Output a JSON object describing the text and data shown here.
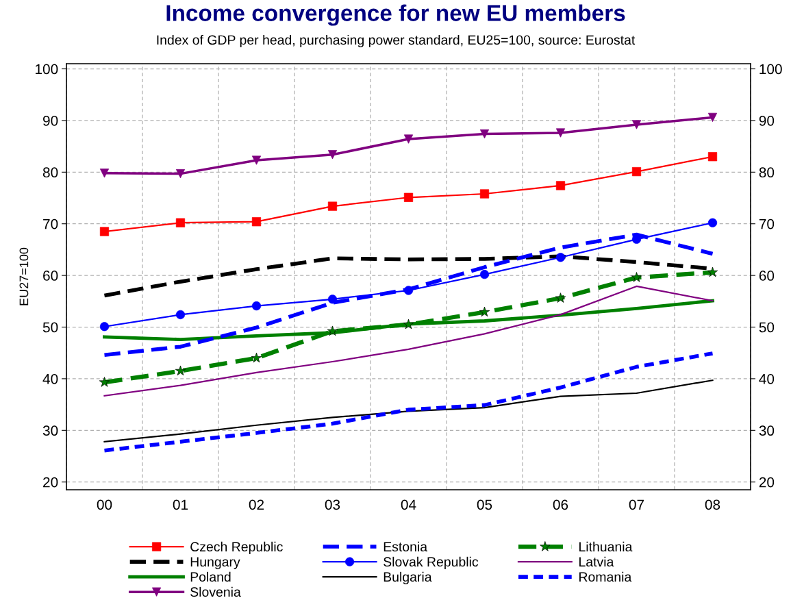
{
  "chart_data": {
    "type": "line",
    "title": "Income convergence for new EU members",
    "subtitle": "Index of GDP per head, purchasing power standard, EU25=100, source: Eurostat",
    "ylabel": "EU27=100",
    "categories": [
      "00",
      "01",
      "02",
      "03",
      "04",
      "05",
      "06",
      "07",
      "08"
    ],
    "ylim": [
      18.5,
      101
    ],
    "yticks": [
      20,
      30,
      40,
      50,
      60,
      70,
      80,
      90,
      100
    ],
    "y2lim": [
      18.5,
      101
    ],
    "y2ticks": [
      20,
      30,
      40,
      50,
      60,
      70,
      80,
      90,
      100
    ],
    "grid": true,
    "legend": "bottom",
    "series": [
      {
        "name": "Czech Republic",
        "color": "#ff0000",
        "marker": "square",
        "line_style": "solid",
        "values": [
          68.5,
          70.2,
          70.4,
          73.4,
          75.1,
          75.8,
          77.4,
          80.1,
          83.0
        ]
      },
      {
        "name": "Hungary",
        "color": "#000000",
        "marker": "none",
        "line_style": "dashed",
        "values": [
          56.1,
          58.8,
          61.2,
          63.3,
          63.1,
          63.2,
          63.7,
          62.6,
          61.3
        ]
      },
      {
        "name": "Poland",
        "color": "#008000",
        "marker": "none",
        "line_style": "solid",
        "values": [
          48.1,
          47.6,
          48.3,
          48.9,
          50.6,
          51.2,
          52.3,
          53.6,
          55.1
        ]
      },
      {
        "name": "Slovenia",
        "color": "#800080",
        "marker": "triangle",
        "line_style": "solid",
        "values": [
          79.8,
          79.7,
          82.3,
          83.4,
          86.4,
          87.4,
          87.6,
          89.2,
          90.6
        ]
      },
      {
        "name": "Estonia",
        "color": "#0000ff",
        "marker": "none",
        "line_style": "dashed",
        "values": [
          44.6,
          46.2,
          49.9,
          54.7,
          57.3,
          61.6,
          65.4,
          67.9,
          64.2
        ]
      },
      {
        "name": "Slovak Republic",
        "color": "#0000ff",
        "marker": "circle",
        "line_style": "solid",
        "values": [
          50.1,
          52.4,
          54.1,
          55.4,
          57.1,
          60.2,
          63.5,
          67.0,
          70.2
        ]
      },
      {
        "name": "Bulgaria",
        "color": "#000000",
        "marker": "none",
        "line_style": "solid",
        "values": [
          27.8,
          29.3,
          31.0,
          32.5,
          33.7,
          34.4,
          36.6,
          37.2,
          39.7
        ]
      },
      {
        "name": "Lithuania",
        "color": "#008000",
        "marker": "star",
        "line_style": "dashed",
        "values": [
          39.3,
          41.5,
          44.0,
          49.2,
          50.5,
          52.9,
          55.6,
          59.6,
          60.6
        ]
      },
      {
        "name": "Latvia",
        "color": "#800080",
        "marker": "none",
        "line_style": "solid",
        "values": [
          36.7,
          38.7,
          41.2,
          43.3,
          45.7,
          48.7,
          52.4,
          57.9,
          55.1
        ]
      },
      {
        "name": "Romania",
        "color": "#0000ff",
        "marker": "none",
        "line_style": "dotted",
        "values": [
          26.1,
          27.8,
          29.5,
          31.3,
          34.0,
          34.9,
          38.3,
          42.3,
          44.9
        ]
      }
    ]
  }
}
